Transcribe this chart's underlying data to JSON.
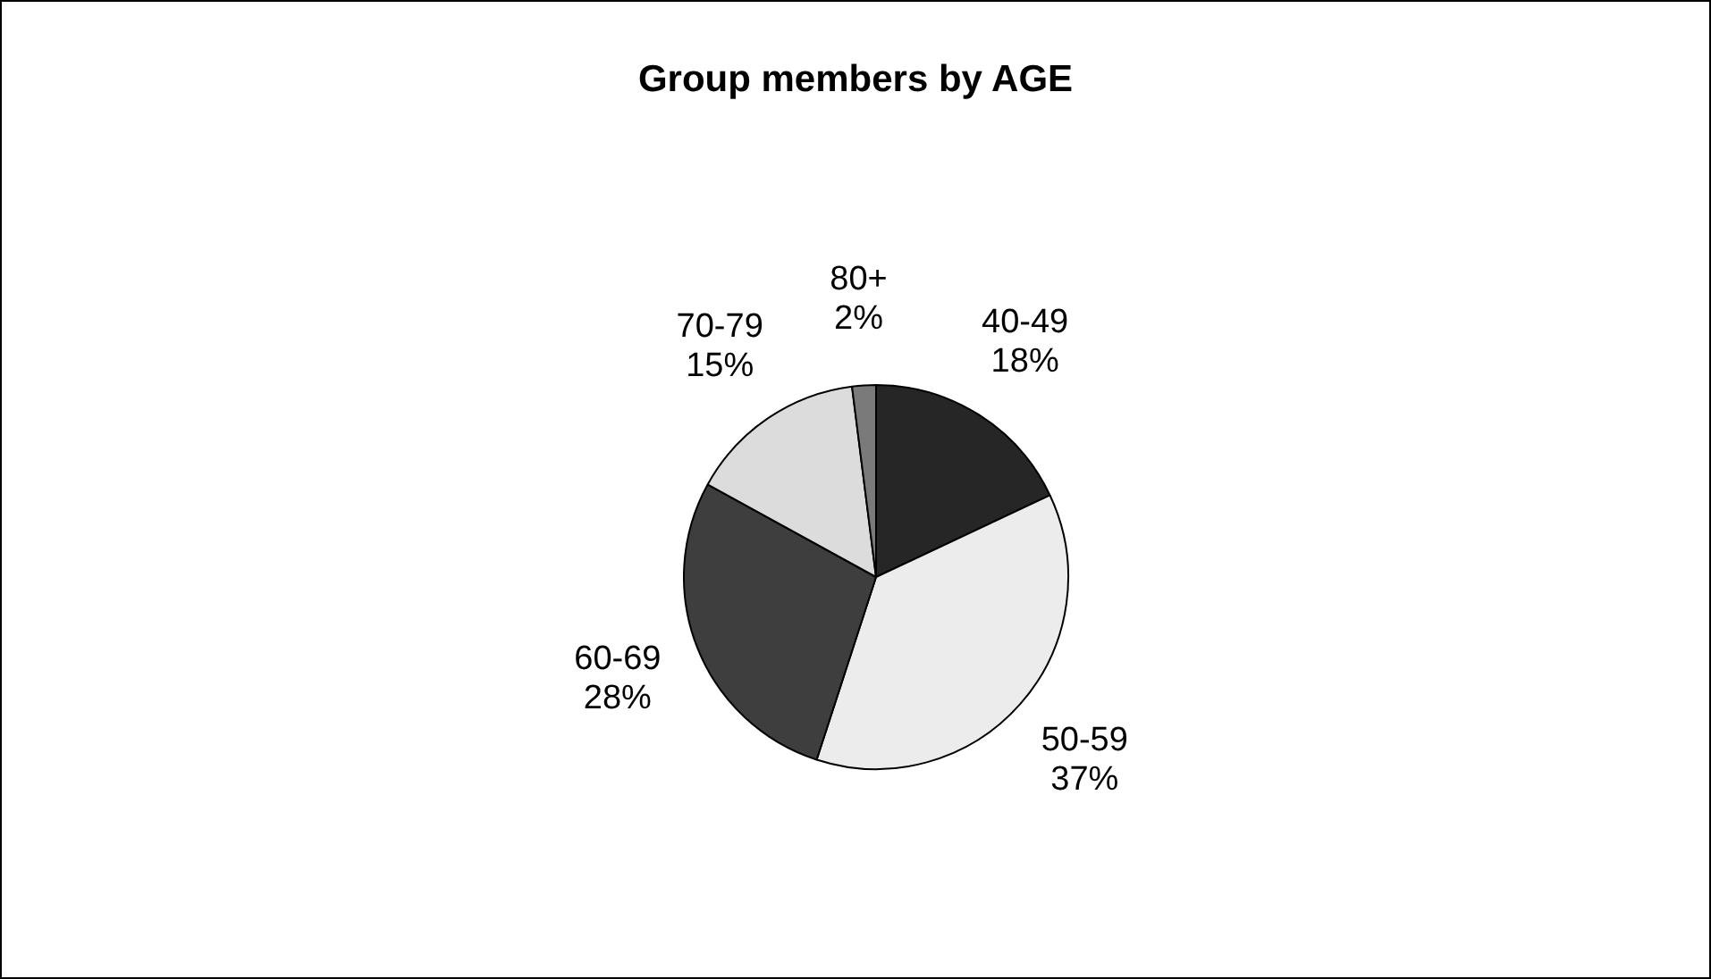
{
  "chart_data": {
    "type": "pie",
    "title": "Group members by AGE",
    "categories": [
      "40-49",
      "50-59",
      "60-69",
      "70-79",
      "80+"
    ],
    "values": [
      18,
      37,
      28,
      15,
      2
    ],
    "value_labels": [
      "18%",
      "37%",
      "28%",
      "15%",
      "2%"
    ],
    "colors": [
      "#262626",
      "#ececec",
      "#3e3e3e",
      "#dcdcdc",
      "#7a7a7a"
    ],
    "legend": false
  }
}
